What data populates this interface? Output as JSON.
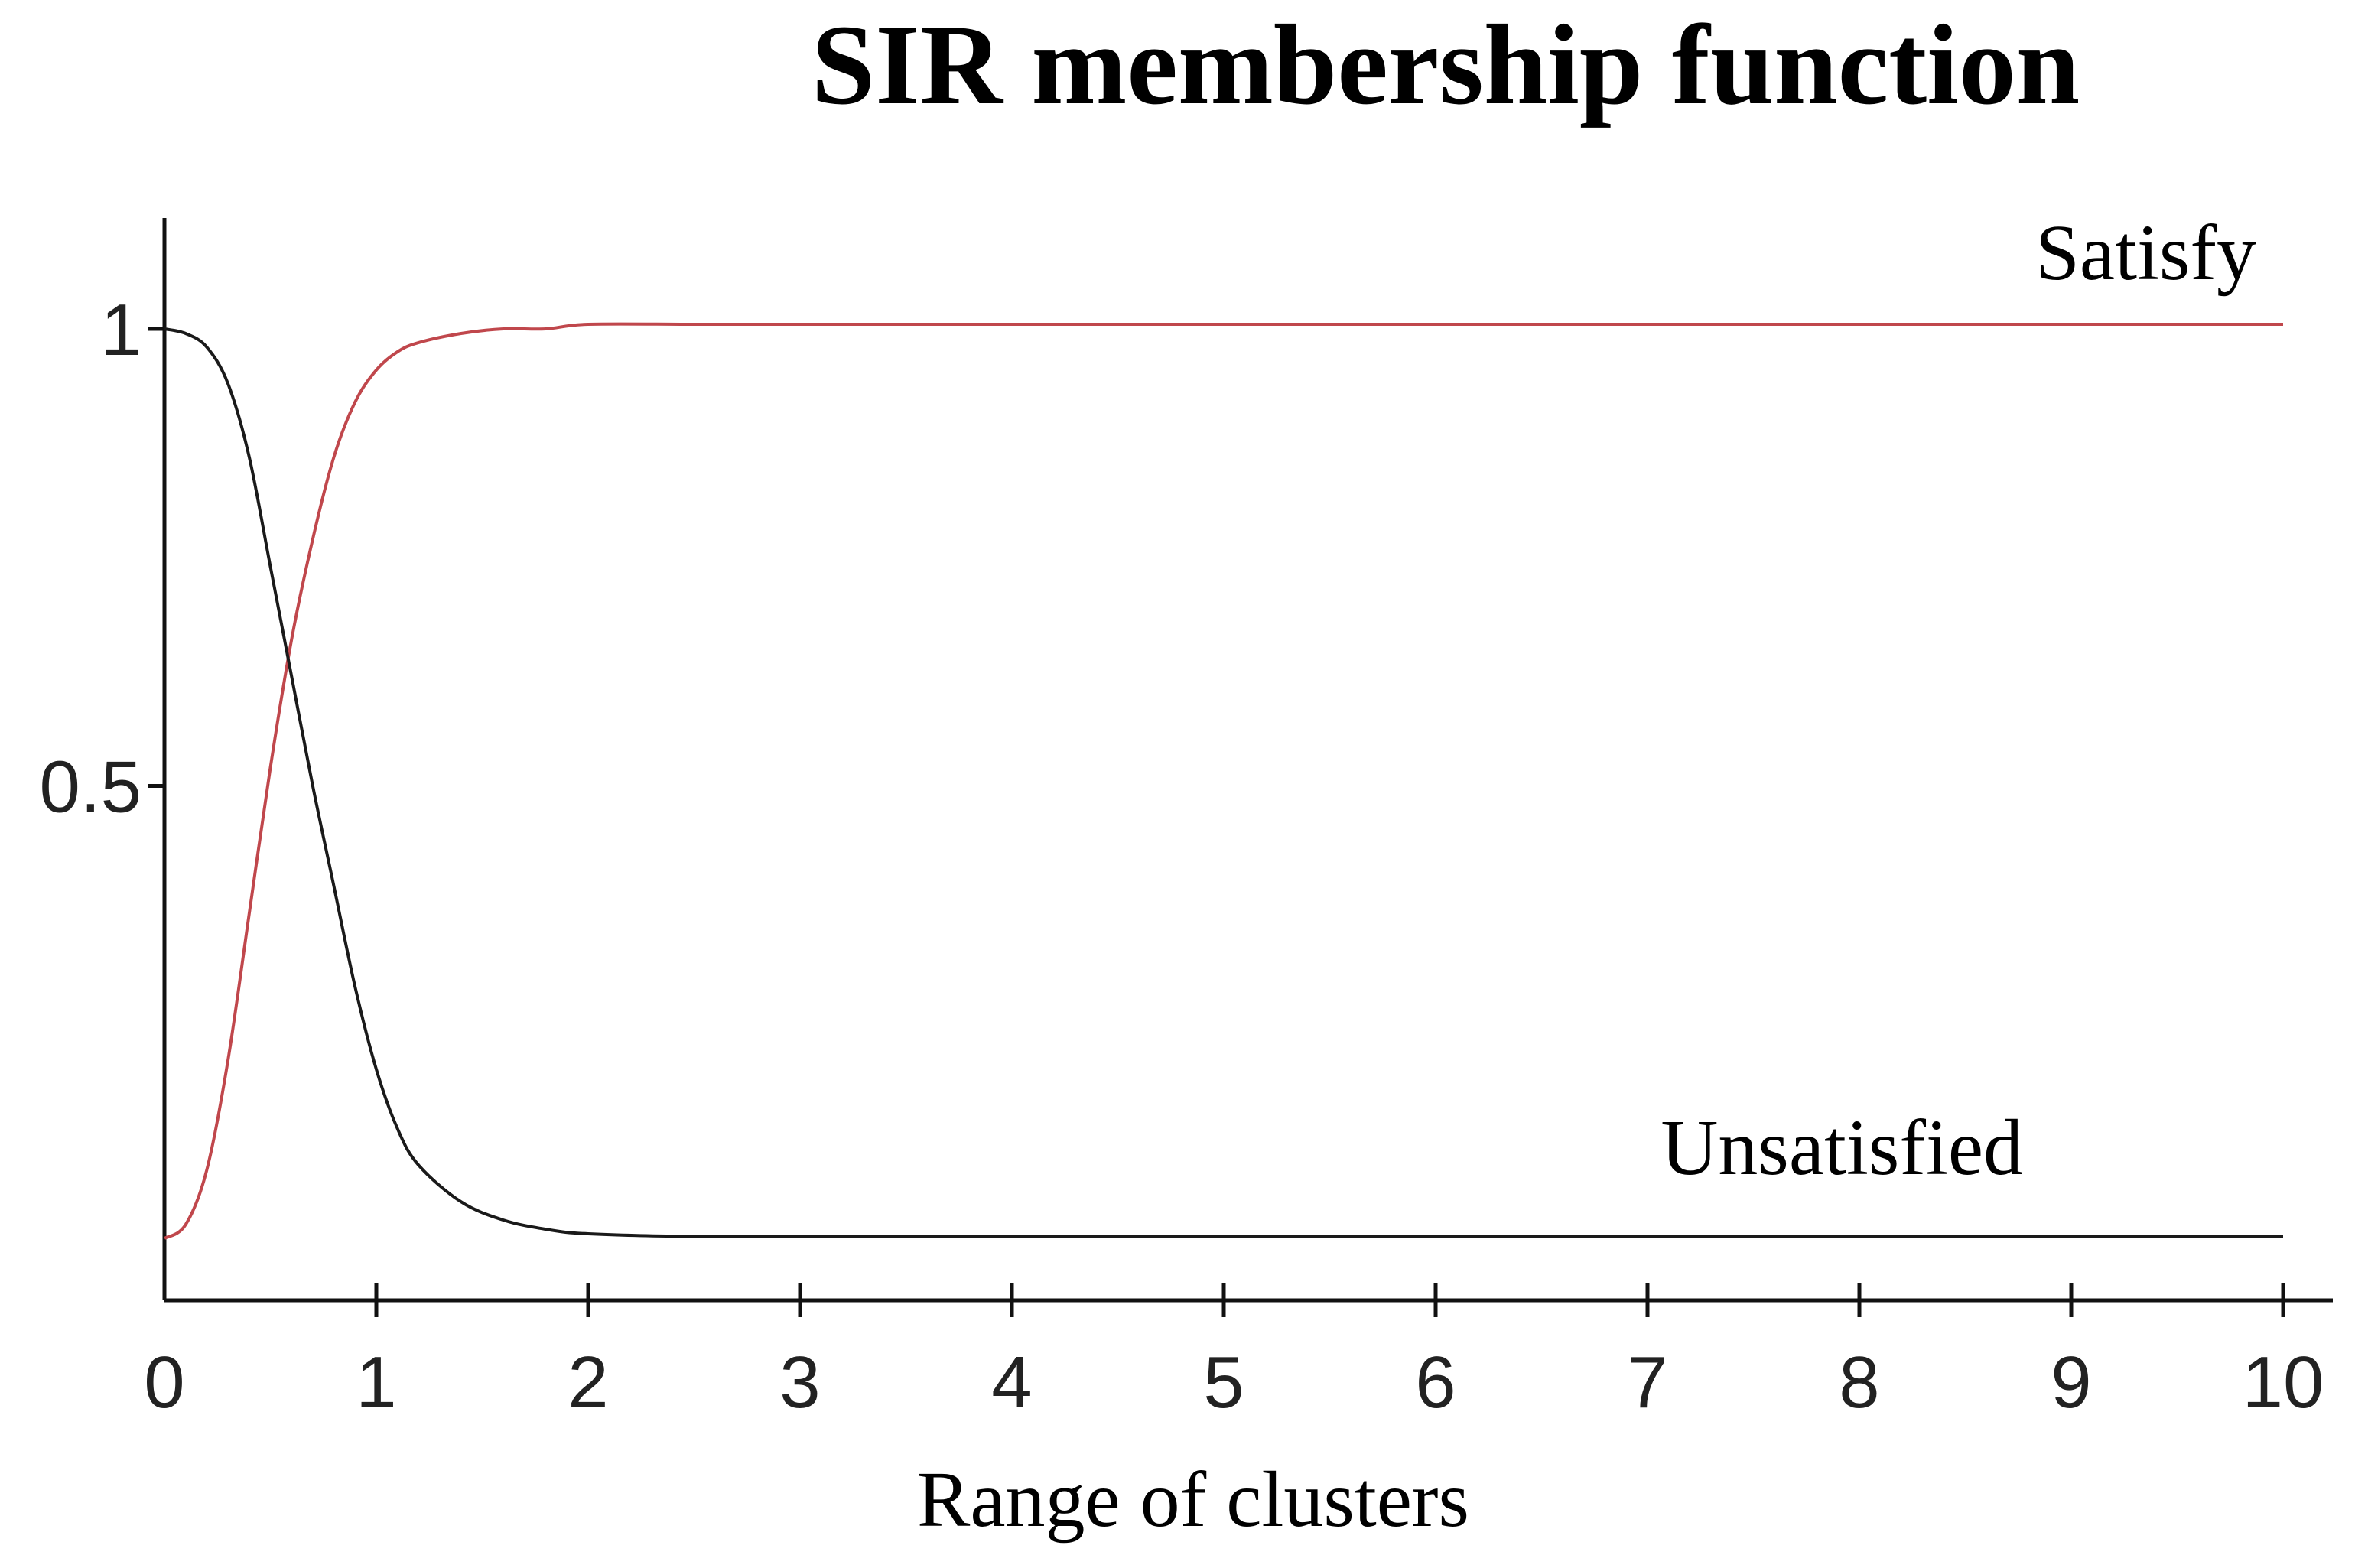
{
  "chart_data": {
    "type": "line",
    "title": "SIR membership function",
    "xlabel": "Range of clusters",
    "ylabel": "",
    "xlim": [
      0,
      10.3
    ],
    "ylim": [
      -0.07,
      1.12
    ],
    "xticks": [
      {
        "value": 0,
        "label": "0"
      },
      {
        "value": 1,
        "label": "1"
      },
      {
        "value": 2,
        "label": "2"
      },
      {
        "value": 3,
        "label": "3"
      },
      {
        "value": 4,
        "label": "4"
      },
      {
        "value": 5,
        "label": "5"
      },
      {
        "value": 6,
        "label": "6"
      },
      {
        "value": 7,
        "label": "7"
      },
      {
        "value": 8,
        "label": "8"
      },
      {
        "value": 9,
        "label": "9"
      },
      {
        "value": 10,
        "label": "10"
      }
    ],
    "yticks": [
      {
        "value": 0.5,
        "label": "0.5"
      },
      {
        "value": 1,
        "label": "1"
      }
    ],
    "grid": false,
    "legend": "none",
    "series": [
      {
        "name": "Satisfy",
        "color": "#c0474c",
        "x": [
          0,
          0.1,
          0.2,
          0.3,
          0.4,
          0.5,
          0.6,
          0.7,
          0.8,
          0.9,
          1.0,
          1.1,
          1.2,
          1.4,
          1.6,
          1.8,
          2.0,
          2.5,
          3,
          4,
          5,
          6,
          7,
          8,
          9,
          10
        ],
        "y": [
          0.005,
          0.02,
          0.08,
          0.2,
          0.36,
          0.52,
          0.66,
          0.77,
          0.86,
          0.92,
          0.955,
          0.975,
          0.985,
          0.995,
          1.0,
          1.0,
          1.005,
          1.005,
          1.005,
          1.005,
          1.005,
          1.005,
          1.005,
          1.005,
          1.005,
          1.005
        ]
      },
      {
        "name": "Unsatisfied",
        "color": "#1a1a1a",
        "x": [
          0,
          0.1,
          0.2,
          0.3,
          0.4,
          0.5,
          0.6,
          0.7,
          0.8,
          0.9,
          1.0,
          1.1,
          1.2,
          1.4,
          1.6,
          1.8,
          2.0,
          2.5,
          3,
          4,
          5,
          6,
          7,
          8,
          9,
          10
        ],
        "y": [
          1.0,
          0.995,
          0.98,
          0.94,
          0.86,
          0.74,
          0.62,
          0.5,
          0.39,
          0.28,
          0.19,
          0.125,
          0.085,
          0.045,
          0.025,
          0.015,
          0.01,
          0.007,
          0.007,
          0.007,
          0.007,
          0.007,
          0.007,
          0.007,
          0.007,
          0.007
        ]
      }
    ]
  }
}
